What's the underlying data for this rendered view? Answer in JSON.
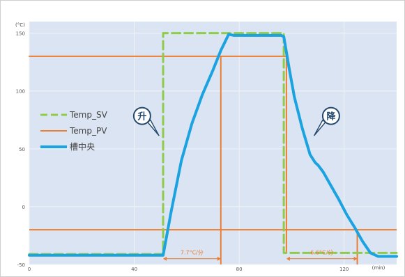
{
  "chart_data": {
    "type": "line",
    "y_unit_label": "(°C)",
    "x_unit_label": "(min)",
    "xlim": [
      0,
      140
    ],
    "ylim": [
      -50,
      160
    ],
    "x_ticks": [
      {
        "value": 0,
        "label": "0"
      },
      {
        "value": 40,
        "label": "40"
      },
      {
        "value": 80,
        "label": "80"
      },
      {
        "value": 120,
        "label": "120"
      }
    ],
    "y_ticks": [
      {
        "value": -50,
        "label": "-50"
      },
      {
        "value": 0,
        "label": "0"
      },
      {
        "value": 50,
        "label": "50"
      },
      {
        "value": 100,
        "label": "100"
      },
      {
        "value": 150,
        "label": "150"
      }
    ],
    "grid": true,
    "legend_position": "left",
    "series": [
      {
        "name": "Temp_SV",
        "color": "#8fcc4c",
        "dash": true,
        "x": [
          0,
          51,
          51,
          97,
          97,
          140
        ],
        "y": [
          -41,
          -41,
          150,
          150,
          -40,
          -40
        ]
      },
      {
        "name": "Temp_PV",
        "color": "#ed7d31",
        "dash": false,
        "x": [
          0,
          98,
          98
        ],
        "y": [
          130,
          130,
          -40
        ]
      },
      {
        "name": "槽中央",
        "color": "#1aa3e0",
        "dash": false,
        "x": [
          0,
          51,
          52,
          54,
          58,
          62,
          66,
          70,
          73,
          76,
          78,
          96,
          97,
          99,
          101,
          104,
          107,
          109,
          110,
          112,
          115,
          118,
          121,
          124,
          127,
          130,
          133,
          136,
          140
        ],
        "y": [
          -42,
          -42,
          -30,
          -5,
          40,
          72,
          97,
          118,
          135,
          149,
          148,
          148,
          147,
          120,
          95,
          68,
          45,
          38,
          36,
          30,
          18,
          6,
          -7,
          -18,
          -30,
          -40,
          -43,
          -43,
          -43
        ]
      }
    ],
    "reference_lines": [
      {
        "orientation": "horizontal",
        "value": -20,
        "x_from": 0,
        "x_to": 140,
        "color": "#ed7d31"
      },
      {
        "orientation": "vertical",
        "value": 73,
        "y_from": -50,
        "y_to": 130,
        "color": "#ed7d31"
      },
      {
        "orientation": "vertical",
        "value": 125,
        "y_from": -50,
        "y_to": -20,
        "color": "#ed7d31"
      }
    ],
    "rate_annotations": [
      {
        "label": "7.7°C/分",
        "x_from": 51,
        "x_to": 73,
        "y": -45,
        "color": "#ed7d31"
      },
      {
        "label": "6.6°C/分",
        "x_from": 98,
        "x_to": 125,
        "y": -45,
        "color": "#ed7d31"
      }
    ],
    "phase_bubbles": [
      {
        "label": "升",
        "x": 43,
        "y": 70
      },
      {
        "label": "降",
        "x": 115,
        "y": 70
      }
    ]
  }
}
